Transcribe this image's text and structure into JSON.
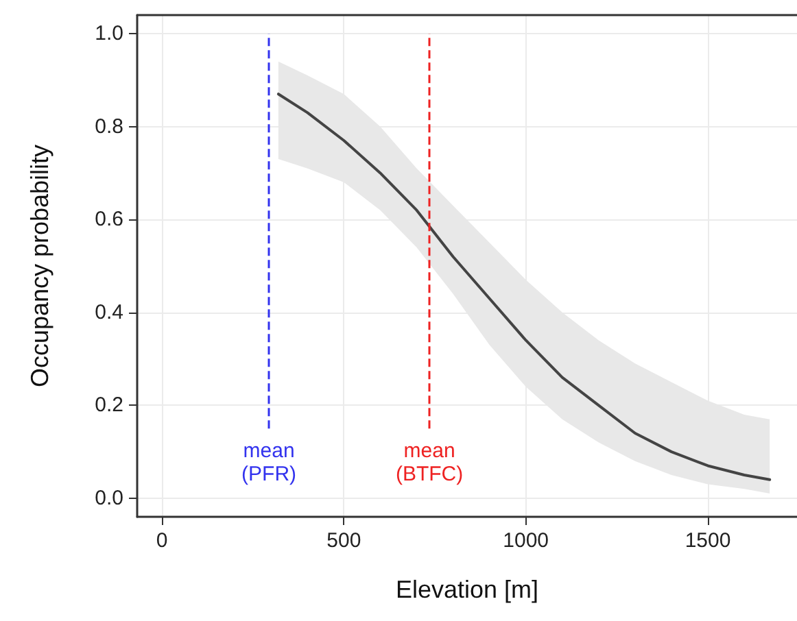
{
  "chart_data": {
    "type": "line",
    "xlabel": "Elevation [m]",
    "ylabel": "Occupancy probability",
    "x": [
      320,
      400,
      500,
      600,
      700,
      800,
      900,
      1000,
      1100,
      1200,
      1300,
      1400,
      1500,
      1600,
      1670
    ],
    "series": [
      {
        "color": "#444444",
        "values": [
          0.87,
          0.83,
          0.77,
          0.7,
          0.62,
          0.52,
          0.43,
          0.34,
          0.26,
          0.2,
          0.14,
          0.1,
          0.07,
          0.05,
          0.04
        ],
        "lower": [
          0.73,
          0.71,
          0.68,
          0.62,
          0.54,
          0.44,
          0.33,
          0.24,
          0.17,
          0.12,
          0.08,
          0.05,
          0.03,
          0.02,
          0.01
        ],
        "upper": [
          0.94,
          0.91,
          0.87,
          0.8,
          0.71,
          0.63,
          0.55,
          0.47,
          0.4,
          0.34,
          0.29,
          0.25,
          0.21,
          0.18,
          0.17
        ]
      }
    ],
    "xlim": [
      -68,
      1745
    ],
    "ylim": [
      -0.04,
      1.04
    ],
    "xticks": [
      0,
      500,
      1000,
      1500
    ],
    "yticks": [
      {
        "value": 0,
        "label": "0.0"
      },
      {
        "value": 0.2,
        "label": "0.2"
      },
      {
        "value": 0.4,
        "label": "0.4"
      },
      {
        "value": 0.6,
        "label": "0.6"
      },
      {
        "value": 0.8,
        "label": "0.8"
      },
      {
        "value": 1,
        "label": "1.0"
      }
    ],
    "ref_lines": [
      {
        "axis": "x",
        "value": 294,
        "label": "mean\n(PFR)",
        "color": "#3333ee",
        "line_style": "dashed"
      },
      {
        "axis": "x",
        "value": 735,
        "label": "mean\n(BTFC)",
        "color": "#ee2222",
        "line_style": "dashed"
      }
    ],
    "grid": true,
    "marker": "none",
    "line_style": "solid"
  }
}
